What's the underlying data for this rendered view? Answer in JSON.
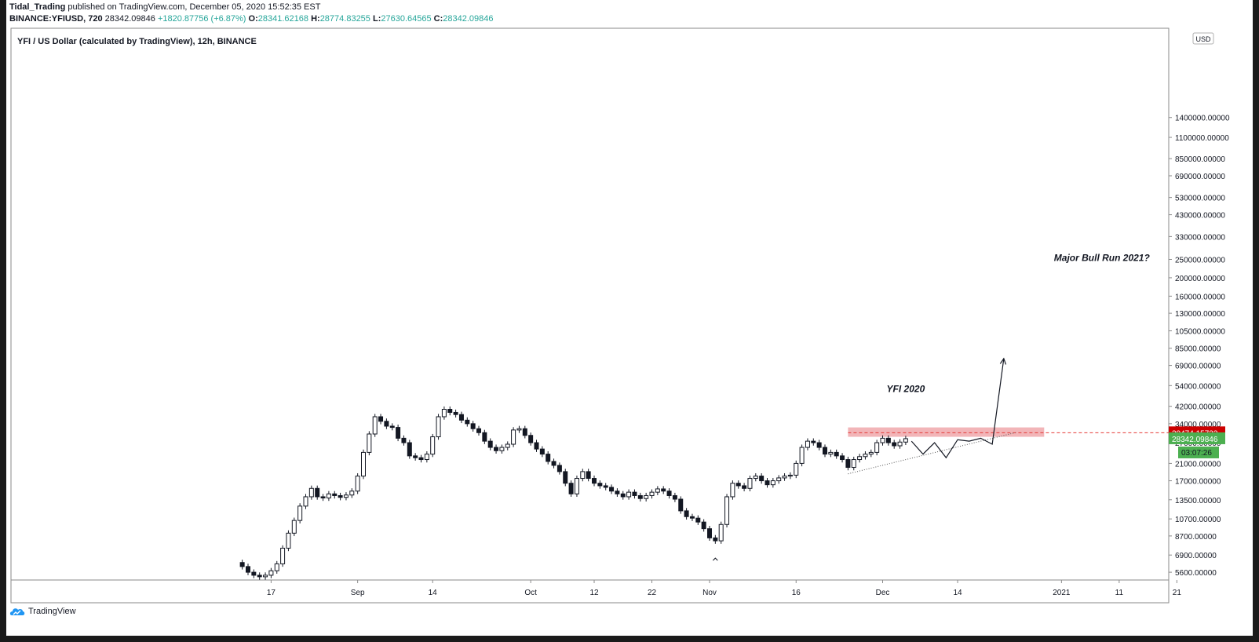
{
  "header": {
    "author": "Tidal_Trading",
    "published": "published on TradingView.com, December 05, 2020 15:52:35 EST",
    "symbol": "BINANCE:YFIUSD, 720",
    "last": "28342.09846",
    "change": "+1820.87756 (+6.87%)",
    "o_label": "O:",
    "o": "28341.62168",
    "h_label": "H:",
    "h": "28774.83255",
    "l_label": "L:",
    "l": "27630.64565",
    "c_label": "C:",
    "c": "28342.09846"
  },
  "footer": {
    "brand": "TradingView"
  },
  "chart_data": {
    "type": "candlestick",
    "title": "YFI / US Dollar (calculated by TradingView), 12h, BINANCE",
    "currency": "USD",
    "scale": "log",
    "y_ticks": [
      5600,
      6900,
      8700,
      10700,
      13500,
      17000,
      21000,
      27000,
      34000,
      42000,
      54000,
      69000,
      85000,
      105000,
      130000,
      160000,
      200000,
      250000,
      330000,
      430000,
      530000,
      690000,
      850000,
      1100000,
      1400000
    ],
    "y_tick_labels": [
      "5600.00000",
      "6900.00000",
      "8700.00000",
      "10700.00000",
      "13500.00000",
      "17000.00000",
      "21000.00000",
      "27000.00000",
      "34000.00000",
      "42000.00000",
      "54000.00000",
      "69000.00000",
      "85000.00000",
      "105000.00000",
      "130000.00000",
      "160000.00000",
      "200000.00000",
      "250000.00000",
      "330000.00000",
      "430000.00000",
      "530000.00000",
      "690000.00000",
      "850000.00000",
      "1100000.00000",
      "1400000.00000"
    ],
    "x_ticks": [
      "17",
      "Sep",
      "14",
      "Oct",
      "12",
      "22",
      "Nov",
      "16",
      "Dec",
      "14",
      "2021",
      "11",
      "21"
    ],
    "x_tick_days": [
      16,
      31,
      44,
      61,
      72,
      82,
      92,
      107,
      122,
      135,
      153,
      163,
      173
    ],
    "start_date": "2020-07-25",
    "closes": [
      [
        11,
        6000
      ],
      [
        12,
        5600
      ],
      [
        13,
        5400
      ],
      [
        14,
        5300
      ],
      [
        15,
        5400
      ],
      [
        16,
        5700
      ],
      [
        17,
        6200
      ],
      [
        18,
        7500
      ],
      [
        19,
        9000
      ],
      [
        20,
        10500
      ],
      [
        21,
        12500
      ],
      [
        22,
        14000
      ],
      [
        23,
        15500
      ],
      [
        24,
        14000
      ],
      [
        25,
        13800
      ],
      [
        26,
        14500
      ],
      [
        27,
        14200
      ],
      [
        28,
        13900
      ],
      [
        29,
        14300
      ],
      [
        30,
        15000
      ],
      [
        31,
        18000
      ],
      [
        32,
        24000
      ],
      [
        33,
        30000
      ],
      [
        34,
        37000
      ],
      [
        35,
        35000
      ],
      [
        36,
        33000
      ],
      [
        37,
        32500
      ],
      [
        38,
        28500
      ],
      [
        39,
        27000
      ],
      [
        40,
        23000
      ],
      [
        41,
        22500
      ],
      [
        42,
        22000
      ],
      [
        43,
        23500
      ],
      [
        44,
        29000
      ],
      [
        45,
        37000
      ],
      [
        46,
        40500
      ],
      [
        47,
        39000
      ],
      [
        48,
        38000
      ],
      [
        49,
        35500
      ],
      [
        50,
        34000
      ],
      [
        51,
        32000
      ],
      [
        52,
        30500
      ],
      [
        53,
        27500
      ],
      [
        54,
        25500
      ],
      [
        55,
        24500
      ],
      [
        56,
        25500
      ],
      [
        57,
        26500
      ],
      [
        58,
        31500
      ],
      [
        59,
        32000
      ],
      [
        60,
        29500
      ],
      [
        61,
        27000
      ],
      [
        62,
        25000
      ],
      [
        63,
        23500
      ],
      [
        64,
        21500
      ],
      [
        65,
        20500
      ],
      [
        66,
        19000
      ],
      [
        67,
        16500
      ],
      [
        68,
        14500
      ],
      [
        69,
        17500
      ],
      [
        70,
        19000
      ],
      [
        71,
        17500
      ],
      [
        72,
        16500
      ],
      [
        73,
        16000
      ],
      [
        74,
        15700
      ],
      [
        75,
        15000
      ],
      [
        76,
        14500
      ],
      [
        77,
        14000
      ],
      [
        78,
        14800
      ],
      [
        79,
        14200
      ],
      [
        80,
        13700
      ],
      [
        81,
        14200
      ],
      [
        82,
        14800
      ],
      [
        83,
        15400
      ],
      [
        84,
        15000
      ],
      [
        85,
        14200
      ],
      [
        86,
        13600
      ],
      [
        87,
        11800
      ],
      [
        88,
        11000
      ],
      [
        89,
        10800
      ],
      [
        90,
        10300
      ],
      [
        91,
        9500
      ],
      [
        92,
        8500
      ],
      [
        93,
        8200
      ],
      [
        94,
        10000
      ],
      [
        95,
        14000
      ],
      [
        96,
        16500
      ],
      [
        97,
        16000
      ],
      [
        98,
        15500
      ],
      [
        99,
        17500
      ],
      [
        100,
        18000
      ],
      [
        101,
        17000
      ],
      [
        102,
        16200
      ],
      [
        103,
        17000
      ],
      [
        104,
        17600
      ],
      [
        105,
        18000
      ],
      [
        106,
        18200
      ],
      [
        107,
        21000
      ],
      [
        108,
        25500
      ],
      [
        109,
        27500
      ],
      [
        110,
        27000
      ],
      [
        111,
        25500
      ],
      [
        112,
        23500
      ],
      [
        113,
        24000
      ],
      [
        114,
        23000
      ],
      [
        115,
        22000
      ],
      [
        116,
        20000
      ],
      [
        117,
        22000
      ],
      [
        118,
        22800
      ],
      [
        119,
        23500
      ],
      [
        120,
        24000
      ],
      [
        121,
        27000
      ],
      [
        122,
        28500
      ],
      [
        123,
        27000
      ],
      [
        124,
        26000
      ],
      [
        125,
        27200
      ],
      [
        126,
        28342
      ]
    ],
    "level_value": 30474.15723,
    "level_label": "30474.15723",
    "last_value": 28342.09846,
    "last_label": "28342.09846",
    "countdown": "03:07:26",
    "annotations": [
      {
        "text": "YFI 2020",
        "day": 126,
        "value": 50000
      },
      {
        "text": "Major Bull Run 2021?",
        "day": 160,
        "value": 245000
      }
    ],
    "projection_path": [
      [
        127,
        27500
      ],
      [
        129,
        23500
      ],
      [
        131,
        27000
      ],
      [
        133,
        22500
      ],
      [
        135,
        28000
      ],
      [
        137,
        27500
      ],
      [
        139,
        28500
      ],
      [
        141,
        26500
      ],
      [
        143,
        75000
      ]
    ],
    "trendline": [
      [
        116,
        18500
      ],
      [
        145,
        30500
      ]
    ],
    "resistance_zone": [
      29000,
      32500
    ],
    "resistance_zone_days": [
      116,
      150
    ]
  },
  "colors": {
    "up": "#131722",
    "down": "#131722",
    "zone": "#f0a8ac",
    "level": "#e53935",
    "level_label_bg": "#cc0000",
    "last_label_bg": "#4caf50",
    "axis_text": "#131722"
  }
}
